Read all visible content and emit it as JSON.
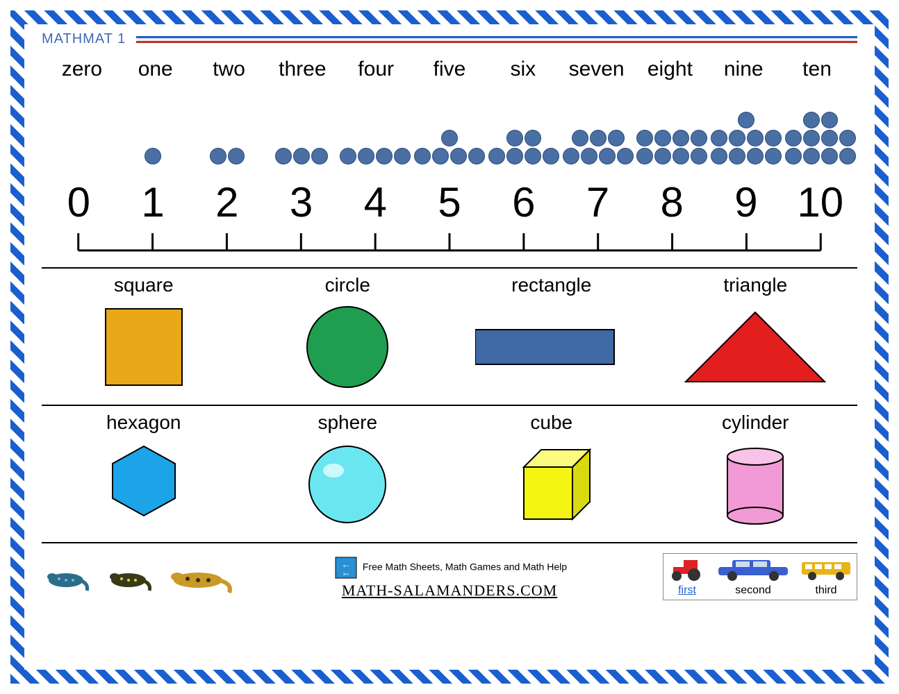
{
  "title": "MATHMAT 1",
  "border_colors": {
    "blue": "#1a5fcf",
    "white": "#ffffff"
  },
  "header_line": {
    "top_color": "#1a5fcf",
    "bottom_color": "#c23030"
  },
  "number_words": [
    "zero",
    "one",
    "two",
    "three",
    "four",
    "five",
    "six",
    "seven",
    "eight",
    "nine",
    "ten"
  ],
  "digits": [
    "0",
    "1",
    "2",
    "3",
    "4",
    "5",
    "6",
    "7",
    "8",
    "9",
    "10"
  ],
  "dot_counts": [
    0,
    1,
    2,
    3,
    4,
    5,
    6,
    7,
    8,
    9,
    10
  ],
  "dot_color": "#4a6fa5",
  "dot_border": "#2a4a75",
  "number_line": {
    "stroke": "#000000",
    "stroke_width": 3,
    "ticks": 11
  },
  "shapes_row1": [
    {
      "label": "square",
      "type": "square",
      "fill": "#e8a817",
      "stroke": "#000000"
    },
    {
      "label": "circle",
      "type": "circle",
      "fill": "#1f9e4f",
      "stroke": "#000000"
    },
    {
      "label": "rectangle",
      "type": "rectangle",
      "fill": "#3f6aa3",
      "stroke": "#000000"
    },
    {
      "label": "triangle",
      "type": "triangle",
      "fill": "#e31e1e",
      "stroke": "#000000"
    }
  ],
  "shapes_row2": [
    {
      "label": "hexagon",
      "type": "hexagon",
      "fill": "#1ca3e8",
      "stroke": "#000000"
    },
    {
      "label": "sphere",
      "type": "sphere",
      "fill": "#6ae6f0",
      "stroke": "#000000",
      "highlight": "#caf8fb"
    },
    {
      "label": "cube",
      "type": "cube",
      "fill": "#f5f513",
      "side": "#d9d910",
      "top": "#fbfb80",
      "stroke": "#000000"
    },
    {
      "label": "cylinder",
      "type": "cylinder",
      "fill": "#f29ad6",
      "top": "#f7c3e6",
      "stroke": "#000000"
    }
  ],
  "footer": {
    "tagline": "Free Math Sheets, Math Games and Math Help",
    "site": "MATH-SALAMANDERS.COM"
  },
  "ordinals": [
    {
      "label": "first",
      "underline": true,
      "vehicle": "tractor",
      "color": "#d22"
    },
    {
      "label": "second",
      "underline": false,
      "vehicle": "car",
      "color": "#3a5fcf"
    },
    {
      "label": "third",
      "underline": false,
      "vehicle": "bus",
      "color": "#e8b417"
    }
  ],
  "label_fontsize": 28,
  "word_fontsize": 30,
  "digit_fontsize": 60,
  "background": "#ffffff"
}
